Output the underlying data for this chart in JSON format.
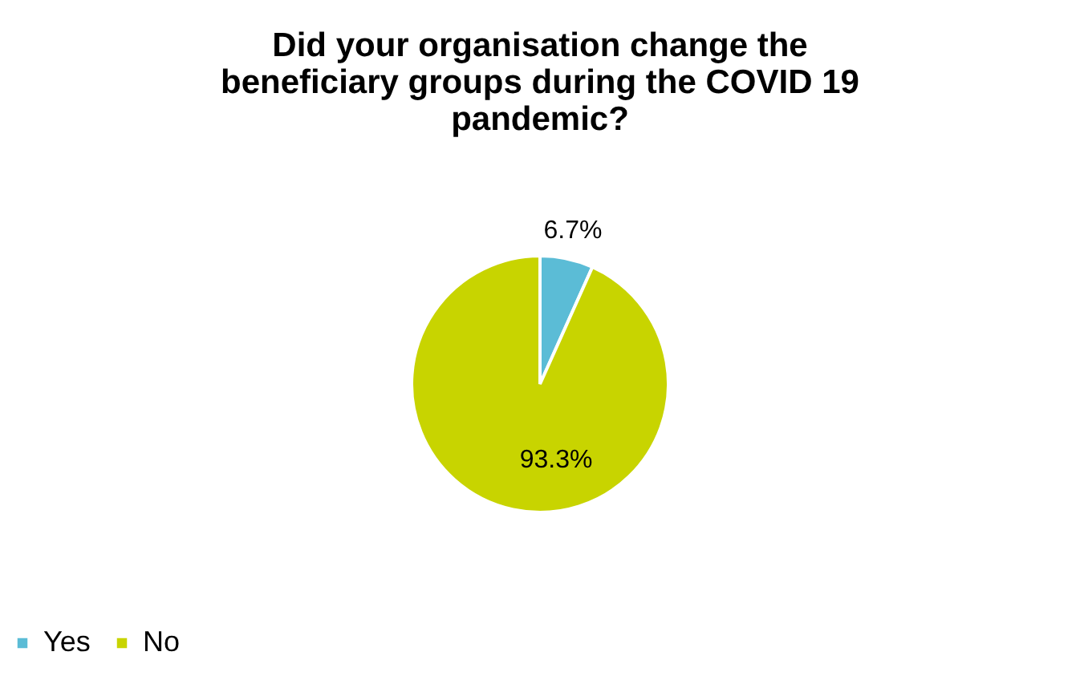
{
  "chart_data": {
    "type": "pie",
    "title": [
      "Did your organisation change the",
      "beneficiary groups during the COVID 19",
      "pandemic?"
    ],
    "categories": [
      "Yes",
      "No"
    ],
    "values": [
      6.7,
      93.3
    ],
    "colors": [
      "#5bbcd6",
      "#c8d400"
    ],
    "value_labels": [
      "6.7%",
      "93.3%"
    ],
    "legend": "bottom"
  }
}
